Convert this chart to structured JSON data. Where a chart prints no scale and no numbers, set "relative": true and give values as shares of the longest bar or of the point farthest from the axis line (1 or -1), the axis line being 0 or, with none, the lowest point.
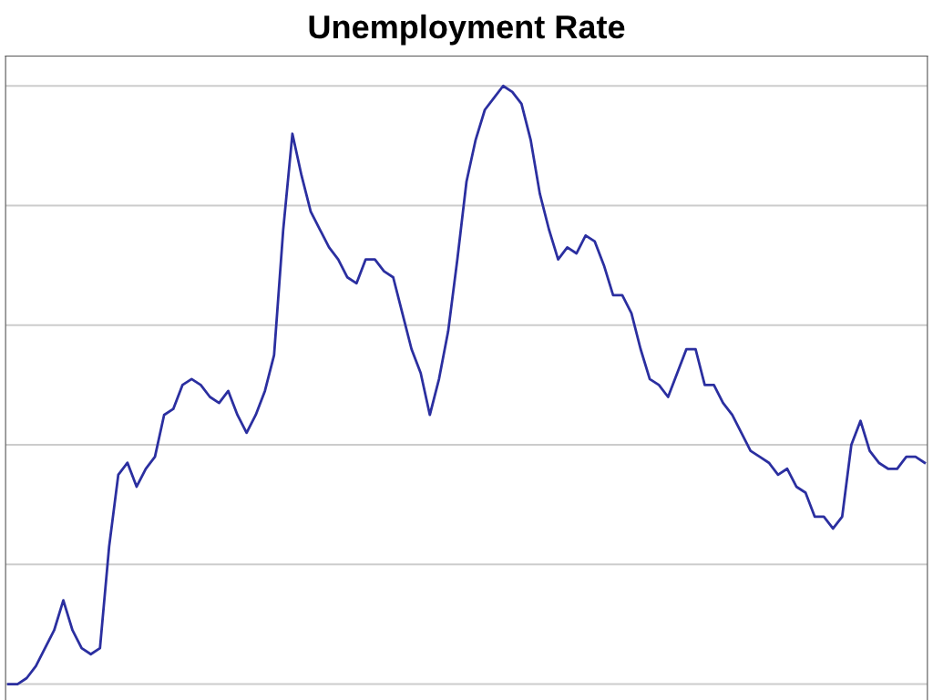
{
  "chart_data": {
    "type": "line",
    "title": "Unemployment Rate",
    "relative": true,
    "grid": "y",
    "categories": [
      null,
      null,
      null,
      null,
      null,
      null,
      null,
      null,
      null,
      null,
      null,
      null,
      null,
      null,
      null,
      null,
      null,
      null,
      null,
      null,
      null,
      null,
      null,
      null,
      null,
      null,
      null,
      null,
      null,
      null,
      null,
      null,
      null,
      null,
      null,
      null,
      null,
      null,
      null,
      null,
      null,
      null,
      null,
      null,
      null,
      null,
      null,
      null,
      null,
      null,
      null,
      null,
      null,
      null,
      null,
      null,
      null,
      null,
      null,
      null,
      null,
      null,
      null,
      null,
      null,
      null,
      null,
      null,
      null,
      null,
      null,
      null,
      null,
      null,
      null,
      null,
      null,
      null,
      null,
      null,
      null,
      null,
      null,
      null,
      null,
      null,
      null,
      null,
      null,
      null,
      null,
      null,
      null,
      null,
      null,
      null,
      null,
      null,
      null,
      null,
      null
    ],
    "series": [
      {
        "color": "#2b2fa0",
        "values": [
          0,
          0.0,
          0.01,
          0.03,
          0.06,
          0.09,
          0.14,
          0.09,
          0.06,
          0.05,
          0.06,
          0.23,
          0.35,
          0.37,
          0.33,
          0.36,
          0.38,
          0.45,
          0.46,
          0.5,
          0.51,
          0.5,
          0.48,
          0.47,
          0.49,
          0.45,
          0.42,
          0.45,
          0.49,
          0.55,
          0.76,
          0.92,
          0.85,
          0.79,
          0.76,
          0.73,
          0.71,
          0.68,
          0.67,
          0.71,
          0.71,
          0.69,
          0.68,
          0.62,
          0.56,
          0.52,
          0.45,
          0.51,
          0.59,
          0.71,
          0.84,
          0.91,
          0.96,
          0.98,
          1,
          0.99,
          0.97,
          0.91,
          0.82,
          0.76,
          0.71,
          0.73,
          0.72,
          0.75,
          0.74,
          0.7,
          0.65,
          0.65,
          0.62,
          0.56,
          0.51,
          0.5,
          0.48,
          0.52,
          0.56,
          0.56,
          0.5,
          0.5,
          0.47,
          0.45,
          0.42,
          0.39,
          0.38,
          0.37,
          0.35,
          0.36,
          0.33,
          0.32,
          0.28,
          0.28,
          0.26,
          0.28,
          0.4,
          0.44,
          0.39,
          0.37,
          0.36,
          0.36,
          0.38,
          0.38,
          0.37
        ]
      }
    ]
  }
}
